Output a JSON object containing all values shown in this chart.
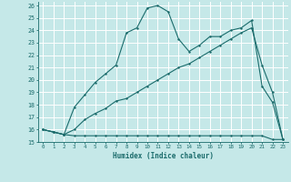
{
  "xlabel": "Humidex (Indice chaleur)",
  "bg_color": "#c5e8e8",
  "grid_color": "#ffffff",
  "line_color": "#1a6b6b",
  "xlim": [
    -0.5,
    23.5
  ],
  "ylim": [
    15,
    26.3
  ],
  "xticks": [
    0,
    1,
    2,
    3,
    4,
    5,
    6,
    7,
    8,
    9,
    10,
    11,
    12,
    13,
    14,
    15,
    16,
    17,
    18,
    19,
    20,
    21,
    22,
    23
  ],
  "yticks": [
    15,
    16,
    17,
    18,
    19,
    20,
    21,
    22,
    23,
    24,
    25,
    26
  ],
  "series1_x": [
    0,
    1,
    2,
    3,
    4,
    5,
    6,
    7,
    8,
    9,
    10,
    11,
    12,
    13,
    14,
    15,
    16,
    17,
    18,
    19,
    20,
    21,
    22,
    23
  ],
  "series1_y": [
    16.0,
    15.8,
    15.6,
    15.5,
    15.5,
    15.5,
    15.5,
    15.5,
    15.5,
    15.5,
    15.5,
    15.5,
    15.5,
    15.5,
    15.5,
    15.5,
    15.5,
    15.5,
    15.5,
    15.5,
    15.5,
    15.5,
    15.2,
    15.2
  ],
  "series2_x": [
    0,
    1,
    2,
    3,
    4,
    5,
    6,
    7,
    8,
    9,
    10,
    11,
    12,
    13,
    14,
    15,
    16,
    17,
    18,
    19,
    20,
    21,
    22,
    23
  ],
  "series2_y": [
    16.0,
    15.8,
    15.6,
    16.0,
    16.8,
    17.3,
    17.7,
    18.3,
    18.5,
    19.0,
    19.5,
    20.0,
    20.5,
    21.0,
    21.3,
    21.8,
    22.3,
    22.8,
    23.3,
    23.8,
    24.2,
    21.2,
    19.0,
    15.2
  ],
  "series3_x": [
    0,
    1,
    2,
    3,
    4,
    5,
    6,
    7,
    8,
    9,
    10,
    11,
    12,
    13,
    14,
    15,
    16,
    17,
    18,
    19,
    20,
    21,
    22,
    23
  ],
  "series3_y": [
    16.0,
    15.8,
    15.6,
    17.8,
    18.8,
    19.8,
    20.5,
    21.2,
    23.8,
    24.2,
    25.8,
    26.0,
    25.5,
    23.3,
    22.3,
    22.8,
    23.5,
    23.5,
    24.0,
    24.2,
    24.8,
    19.5,
    18.2,
    15.2
  ]
}
